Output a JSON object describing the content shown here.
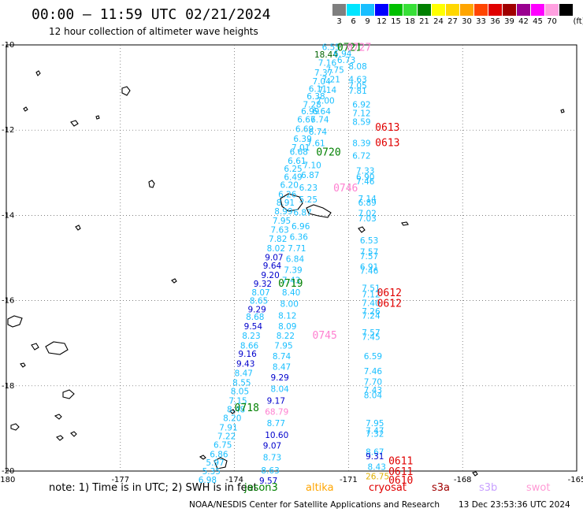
{
  "header": {
    "title": "00:00 – 11:59 UTC 02/21/2024",
    "subtitle": "12 hour collection of altimeter wave heights"
  },
  "colorbar": {
    "unit": "(ft)",
    "items": [
      {
        "label": "3",
        "color": "#7f7f7f"
      },
      {
        "label": "6",
        "color": "#00e5ff"
      },
      {
        "label": "9",
        "color": "#19bfff"
      },
      {
        "label": "12",
        "color": "#0000ff"
      },
      {
        "label": "15",
        "color": "#00c000"
      },
      {
        "label": "18",
        "color": "#37e037"
      },
      {
        "label": "21",
        "color": "#008000"
      },
      {
        "label": "24",
        "color": "#ffff00"
      },
      {
        "label": "27",
        "color": "#ffd700"
      },
      {
        "label": "30",
        "color": "#ffa500"
      },
      {
        "label": "33",
        "color": "#ff4500"
      },
      {
        "label": "36",
        "color": "#e00000"
      },
      {
        "label": "39",
        "color": "#a00000"
      },
      {
        "label": "42",
        "color": "#9a0090"
      },
      {
        "label": "45",
        "color": "#ff00ff"
      },
      {
        "label": "70",
        "color": "#ffa0e0"
      },
      {
        "label": "",
        "color": "#000000"
      }
    ]
  },
  "axes": {
    "lat_labels": [
      "-10",
      "-12",
      "-14",
      "-16",
      "-18",
      "-20"
    ],
    "lon_labels": [
      "-180",
      "-177",
      "-174",
      "-171",
      "-168",
      "-165"
    ],
    "lat_range": [
      -20,
      -10
    ],
    "lon_range": [
      -180,
      -165
    ]
  },
  "palette": {
    "cyan": "#19bfff",
    "blue": "#0000cc",
    "green": "#008000",
    "red": "#e00000",
    "pink": "#ff7fd0",
    "gold": "#e0b000",
    "orange": "#ff8c00",
    "darkgreen": "#006400"
  },
  "wave_heights": [
    {
      "v": "6.55",
      "lon": -171.7,
      "lat": -10.05,
      "c": "cyan"
    },
    {
      "v": "18.44",
      "lon": -171.9,
      "lat": -10.22,
      "c": "darkgreen"
    },
    {
      "v": "6.94",
      "lon": -171.4,
      "lat": -10.2,
      "c": "cyan"
    },
    {
      "v": "6.73",
      "lon": -171.3,
      "lat": -10.35,
      "c": "cyan"
    },
    {
      "v": "7.16",
      "lon": -171.8,
      "lat": -10.42,
      "c": "cyan"
    },
    {
      "v": "8.08",
      "lon": -171.0,
      "lat": -10.5,
      "c": "cyan"
    },
    {
      "v": "7.75",
      "lon": -171.6,
      "lat": -10.58,
      "c": "cyan"
    },
    {
      "v": "7.37",
      "lon": -171.9,
      "lat": -10.65,
      "c": "cyan"
    },
    {
      "v": "7.21",
      "lon": -171.7,
      "lat": -10.8,
      "c": "cyan"
    },
    {
      "v": "4.63",
      "lon": -171.0,
      "lat": -10.8,
      "c": "cyan"
    },
    {
      "v": "7.04",
      "lon": -171.95,
      "lat": -10.85,
      "c": "cyan"
    },
    {
      "v": "7.05",
      "lon": -171.0,
      "lat": -10.95,
      "c": "cyan"
    },
    {
      "v": "6.11",
      "lon": -172.05,
      "lat": -11.03,
      "c": "cyan"
    },
    {
      "v": "7.14",
      "lon": -171.8,
      "lat": -11.05,
      "c": "cyan"
    },
    {
      "v": "7.81",
      "lon": -171.0,
      "lat": -11.07,
      "c": "cyan"
    },
    {
      "v": "6.38",
      "lon": -172.1,
      "lat": -11.2,
      "c": "cyan"
    },
    {
      "v": "7.00",
      "lon": -171.85,
      "lat": -11.3,
      "c": "cyan"
    },
    {
      "v": "7.28",
      "lon": -172.2,
      "lat": -11.4,
      "c": "cyan"
    },
    {
      "v": "6.92",
      "lon": -170.9,
      "lat": -11.4,
      "c": "cyan"
    },
    {
      "v": "6.99",
      "lon": -172.25,
      "lat": -11.55,
      "c": "cyan"
    },
    {
      "v": "6.64",
      "lon": -171.95,
      "lat": -11.55,
      "c": "cyan"
    },
    {
      "v": "7.12",
      "lon": -170.9,
      "lat": -11.6,
      "c": "cyan"
    },
    {
      "v": "6.67",
      "lon": -172.35,
      "lat": -11.75,
      "c": "cyan"
    },
    {
      "v": "6.74",
      "lon": -172.0,
      "lat": -11.75,
      "c": "cyan"
    },
    {
      "v": "8.59",
      "lon": -170.9,
      "lat": -11.8,
      "c": "cyan"
    },
    {
      "v": "6.69",
      "lon": -172.4,
      "lat": -11.97,
      "c": "cyan"
    },
    {
      "v": "6.74",
      "lon": -172.05,
      "lat": -12.03,
      "c": "cyan"
    },
    {
      "v": "6.39",
      "lon": -172.45,
      "lat": -12.2,
      "c": "cyan"
    },
    {
      "v": "7.61",
      "lon": -172.1,
      "lat": -12.3,
      "c": "cyan"
    },
    {
      "v": "8.39",
      "lon": -170.9,
      "lat": -12.3,
      "c": "cyan"
    },
    {
      "v": "7.01",
      "lon": -172.5,
      "lat": -12.4,
      "c": "cyan"
    },
    {
      "v": "6.68",
      "lon": -172.55,
      "lat": -12.5,
      "c": "cyan"
    },
    {
      "v": "6.72",
      "lon": -170.9,
      "lat": -12.6,
      "c": "cyan"
    },
    {
      "v": "6.61",
      "lon": -172.6,
      "lat": -12.72,
      "c": "cyan"
    },
    {
      "v": "7.10",
      "lon": -172.2,
      "lat": -12.82,
      "c": "cyan"
    },
    {
      "v": "6.25",
      "lon": -172.7,
      "lat": -12.9,
      "c": "cyan"
    },
    {
      "v": "7.33",
      "lon": -170.8,
      "lat": -12.95,
      "c": "cyan"
    },
    {
      "v": "6.87",
      "lon": -172.25,
      "lat": -13.05,
      "c": "cyan"
    },
    {
      "v": "6.49",
      "lon": -172.7,
      "lat": -13.1,
      "c": "cyan"
    },
    {
      "v": "6.90",
      "lon": -170.8,
      "lat": -13.1,
      "c": "cyan"
    },
    {
      "v": "7.46",
      "lon": -170.8,
      "lat": -13.2,
      "c": "cyan"
    },
    {
      "v": "6.20",
      "lon": -172.8,
      "lat": -13.28,
      "c": "cyan"
    },
    {
      "v": "6.23",
      "lon": -172.3,
      "lat": -13.35,
      "c": "cyan"
    },
    {
      "v": "6.26",
      "lon": -172.85,
      "lat": -13.5,
      "c": "cyan"
    },
    {
      "v": "5.25",
      "lon": -172.3,
      "lat": -13.62,
      "c": "cyan"
    },
    {
      "v": "7.14",
      "lon": -170.75,
      "lat": -13.6,
      "c": "cyan"
    },
    {
      "v": "6.89",
      "lon": -170.75,
      "lat": -13.7,
      "c": "cyan"
    },
    {
      "v": "8.91",
      "lon": -172.9,
      "lat": -13.7,
      "c": "cyan"
    },
    {
      "v": "8.99",
      "lon": -172.95,
      "lat": -13.9,
      "c": "cyan"
    },
    {
      "v": "6.87",
      "lon": -172.45,
      "lat": -13.93,
      "c": "cyan"
    },
    {
      "v": "7.02",
      "lon": -170.75,
      "lat": -13.95,
      "c": "cyan"
    },
    {
      "v": "7.03",
      "lon": -170.75,
      "lat": -14.07,
      "c": "cyan"
    },
    {
      "v": "7.95",
      "lon": -173.0,
      "lat": -14.12,
      "c": "cyan"
    },
    {
      "v": "6.96",
      "lon": -172.5,
      "lat": -14.25,
      "c": "cyan"
    },
    {
      "v": "7.63",
      "lon": -173.05,
      "lat": -14.33,
      "c": "cyan"
    },
    {
      "v": "7.82",
      "lon": -173.1,
      "lat": -14.55,
      "c": "cyan"
    },
    {
      "v": "6.36",
      "lon": -172.55,
      "lat": -14.5,
      "c": "cyan"
    },
    {
      "v": "6.53",
      "lon": -170.7,
      "lat": -14.58,
      "c": "cyan"
    },
    {
      "v": "8.02",
      "lon": -173.15,
      "lat": -14.77,
      "c": "cyan"
    },
    {
      "v": "7.71",
      "lon": -172.6,
      "lat": -14.77,
      "c": "cyan"
    },
    {
      "v": "7.57",
      "lon": -170.7,
      "lat": -14.85,
      "c": "cyan"
    },
    {
      "v": "9.07",
      "lon": -173.2,
      "lat": -14.98,
      "c": "blue"
    },
    {
      "v": "7.57",
      "lon": -170.7,
      "lat": -14.95,
      "c": "cyan"
    },
    {
      "v": "6.84",
      "lon": -172.65,
      "lat": -15.02,
      "c": "cyan"
    },
    {
      "v": "9.64",
      "lon": -173.25,
      "lat": -15.18,
      "c": "blue"
    },
    {
      "v": "6.91",
      "lon": -170.7,
      "lat": -15.2,
      "c": "cyan"
    },
    {
      "v": "7.39",
      "lon": -172.7,
      "lat": -15.28,
      "c": "cyan"
    },
    {
      "v": "7.46",
      "lon": -170.7,
      "lat": -15.3,
      "c": "cyan"
    },
    {
      "v": "9.20",
      "lon": -173.3,
      "lat": -15.4,
      "c": "blue"
    },
    {
      "v": "7.43",
      "lon": -172.75,
      "lat": -15.52,
      "c": "cyan"
    },
    {
      "v": "9.32",
      "lon": -173.5,
      "lat": -15.6,
      "c": "blue"
    },
    {
      "v": "7.51",
      "lon": -170.65,
      "lat": -15.7,
      "c": "cyan"
    },
    {
      "v": "8.07",
      "lon": -173.55,
      "lat": -15.8,
      "c": "cyan"
    },
    {
      "v": "8.40",
      "lon": -172.75,
      "lat": -15.8,
      "c": "cyan"
    },
    {
      "v": "7.12",
      "lon": -170.65,
      "lat": -15.85,
      "c": "cyan"
    },
    {
      "v": "8.65",
      "lon": -173.6,
      "lat": -16.0,
      "c": "cyan"
    },
    {
      "v": "8.00",
      "lon": -172.8,
      "lat": -16.07,
      "c": "cyan"
    },
    {
      "v": "7.40",
      "lon": -170.65,
      "lat": -16.05,
      "c": "cyan"
    },
    {
      "v": "9.29",
      "lon": -173.65,
      "lat": -16.2,
      "c": "blue"
    },
    {
      "v": "7.26",
      "lon": -170.65,
      "lat": -16.25,
      "c": "cyan"
    },
    {
      "v": "7.24",
      "lon": -170.65,
      "lat": -16.35,
      "c": "cyan"
    },
    {
      "v": "8.68",
      "lon": -173.7,
      "lat": -16.38,
      "c": "cyan"
    },
    {
      "v": "8.12",
      "lon": -172.85,
      "lat": -16.35,
      "c": "cyan"
    },
    {
      "v": "9.54",
      "lon": -173.75,
      "lat": -16.6,
      "c": "blue"
    },
    {
      "v": "8.09",
      "lon": -172.85,
      "lat": -16.6,
      "c": "cyan"
    },
    {
      "v": "7.57",
      "lon": -170.65,
      "lat": -16.75,
      "c": "cyan"
    },
    {
      "v": "8.23",
      "lon": -173.8,
      "lat": -16.82,
      "c": "cyan"
    },
    {
      "v": "8.22",
      "lon": -172.9,
      "lat": -16.82,
      "c": "cyan"
    },
    {
      "v": "7.45",
      "lon": -170.65,
      "lat": -16.85,
      "c": "cyan"
    },
    {
      "v": "8.66",
      "lon": -173.85,
      "lat": -17.05,
      "c": "cyan"
    },
    {
      "v": "7.95",
      "lon": -172.95,
      "lat": -17.05,
      "c": "cyan"
    },
    {
      "v": "9.16",
      "lon": -173.9,
      "lat": -17.25,
      "c": "blue"
    },
    {
      "v": "8.74",
      "lon": -173.0,
      "lat": -17.3,
      "c": "cyan"
    },
    {
      "v": "6.59",
      "lon": -170.6,
      "lat": -17.3,
      "c": "cyan"
    },
    {
      "v": "9.43",
      "lon": -173.95,
      "lat": -17.48,
      "c": "blue"
    },
    {
      "v": "8.47",
      "lon": -173.0,
      "lat": -17.55,
      "c": "cyan"
    },
    {
      "v": "8.47",
      "lon": -174.0,
      "lat": -17.7,
      "c": "cyan"
    },
    {
      "v": "7.46",
      "lon": -170.6,
      "lat": -17.65,
      "c": "cyan"
    },
    {
      "v": "9.29",
      "lon": -173.05,
      "lat": -17.8,
      "c": "blue"
    },
    {
      "v": "8.55",
      "lon": -174.05,
      "lat": -17.92,
      "c": "cyan"
    },
    {
      "v": "7.70",
      "lon": -170.6,
      "lat": -17.9,
      "c": "cyan"
    },
    {
      "v": "8.05",
      "lon": -174.1,
      "lat": -18.12,
      "c": "cyan"
    },
    {
      "v": "8.04",
      "lon": -173.05,
      "lat": -18.07,
      "c": "cyan"
    },
    {
      "v": "7.43",
      "lon": -170.6,
      "lat": -18.1,
      "c": "cyan"
    },
    {
      "v": "7.15",
      "lon": -174.15,
      "lat": -18.35,
      "c": "cyan"
    },
    {
      "v": "8.04",
      "lon": -170.6,
      "lat": -18.22,
      "c": "cyan"
    },
    {
      "v": "9.17",
      "lon": -173.15,
      "lat": -18.35,
      "c": "blue"
    },
    {
      "v": "8.48",
      "lon": -174.2,
      "lat": -18.55,
      "c": "cyan"
    },
    {
      "v": "68.79",
      "lon": -173.2,
      "lat": -18.6,
      "c": "pink"
    },
    {
      "v": "8.20",
      "lon": -174.3,
      "lat": -18.75,
      "c": "cyan"
    },
    {
      "v": "8.77",
      "lon": -173.15,
      "lat": -18.87,
      "c": "cyan"
    },
    {
      "v": "7.95",
      "lon": -170.55,
      "lat": -18.87,
      "c": "cyan"
    },
    {
      "v": "7.91",
      "lon": -174.4,
      "lat": -18.97,
      "c": "cyan"
    },
    {
      "v": "7.47",
      "lon": -170.55,
      "lat": -19.05,
      "c": "cyan"
    },
    {
      "v": "7.22",
      "lon": -174.45,
      "lat": -19.18,
      "c": "cyan"
    },
    {
      "v": "10.60",
      "lon": -173.2,
      "lat": -19.15,
      "c": "blue"
    },
    {
      "v": "7.32",
      "lon": -170.55,
      "lat": -19.12,
      "c": "cyan"
    },
    {
      "v": "6.75",
      "lon": -174.55,
      "lat": -19.38,
      "c": "cyan"
    },
    {
      "v": "9.07",
      "lon": -173.25,
      "lat": -19.4,
      "c": "blue"
    },
    {
      "v": "6.86",
      "lon": -174.65,
      "lat": -19.6,
      "c": "cyan"
    },
    {
      "v": "8.67",
      "lon": -170.55,
      "lat": -19.55,
      "c": "cyan"
    },
    {
      "v": "9.31",
      "lon": -170.55,
      "lat": -19.65,
      "c": "blue"
    },
    {
      "v": "8.73",
      "lon": -173.25,
      "lat": -19.68,
      "c": "cyan"
    },
    {
      "v": "5.97",
      "lon": -174.75,
      "lat": -19.8,
      "c": "cyan"
    },
    {
      "v": "8.43",
      "lon": -170.5,
      "lat": -19.9,
      "c": "cyan"
    },
    {
      "v": "5.35",
      "lon": -174.85,
      "lat": -20.0,
      "c": "cyan"
    },
    {
      "v": "8.63",
      "lon": -173.3,
      "lat": -19.98,
      "c": "cyan"
    },
    {
      "v": "6.98",
      "lon": -174.95,
      "lat": -20.2,
      "c": "cyan"
    },
    {
      "v": "26.75",
      "lon": -170.55,
      "lat": -20.12,
      "c": "gold"
    },
    {
      "v": "9.57",
      "lon": -173.35,
      "lat": -20.22,
      "c": "blue"
    }
  ],
  "time_labels": [
    {
      "t": "0721",
      "lon": -171.3,
      "lat": -10.05,
      "c": "green"
    },
    {
      "t": "0727",
      "lon": -171.05,
      "lat": -10.05,
      "c": "pink"
    },
    {
      "t": "0613",
      "lon": -170.3,
      "lat": -11.92,
      "c": "red"
    },
    {
      "t": "0613",
      "lon": -170.3,
      "lat": -12.28,
      "c": "red"
    },
    {
      "t": "0720",
      "lon": -171.85,
      "lat": -12.5,
      "c": "green"
    },
    {
      "t": "0746",
      "lon": -171.4,
      "lat": -13.35,
      "c": "pink"
    },
    {
      "t": "0719",
      "lon": -172.85,
      "lat": -15.58,
      "c": "green"
    },
    {
      "t": "0612",
      "lon": -170.25,
      "lat": -15.8,
      "c": "red"
    },
    {
      "t": "0612",
      "lon": -170.25,
      "lat": -16.05,
      "c": "red"
    },
    {
      "t": "0745",
      "lon": -171.95,
      "lat": -16.8,
      "c": "pink"
    },
    {
      "t": "0718",
      "lon": -174.0,
      "lat": -18.5,
      "c": "green"
    },
    {
      "t": "0611",
      "lon": -169.95,
      "lat": -19.75,
      "c": "red"
    },
    {
      "t": "0611",
      "lon": -169.95,
      "lat": -20.0,
      "c": "red"
    },
    {
      "t": "0610",
      "lon": -169.95,
      "lat": -20.2,
      "c": "red"
    }
  ],
  "footer": {
    "note": "note:  1) Time is in UTC; 2) SWH is in feet",
    "satellites": [
      {
        "name": "jason3",
        "color": "#008000"
      },
      {
        "name": "altika",
        "color": "#ffa500"
      },
      {
        "name": "cryosat",
        "color": "#e00000"
      },
      {
        "name": "s3a",
        "color": "#a00000"
      },
      {
        "name": "s3b",
        "color": "#c8a0ff"
      },
      {
        "name": "swot",
        "color": "#ff9ad5"
      }
    ],
    "credit": "NOAA/NESDIS Center for Satellite Applications and Research",
    "timestamp": "13 Dec 23:53:36 UTC 2024"
  }
}
